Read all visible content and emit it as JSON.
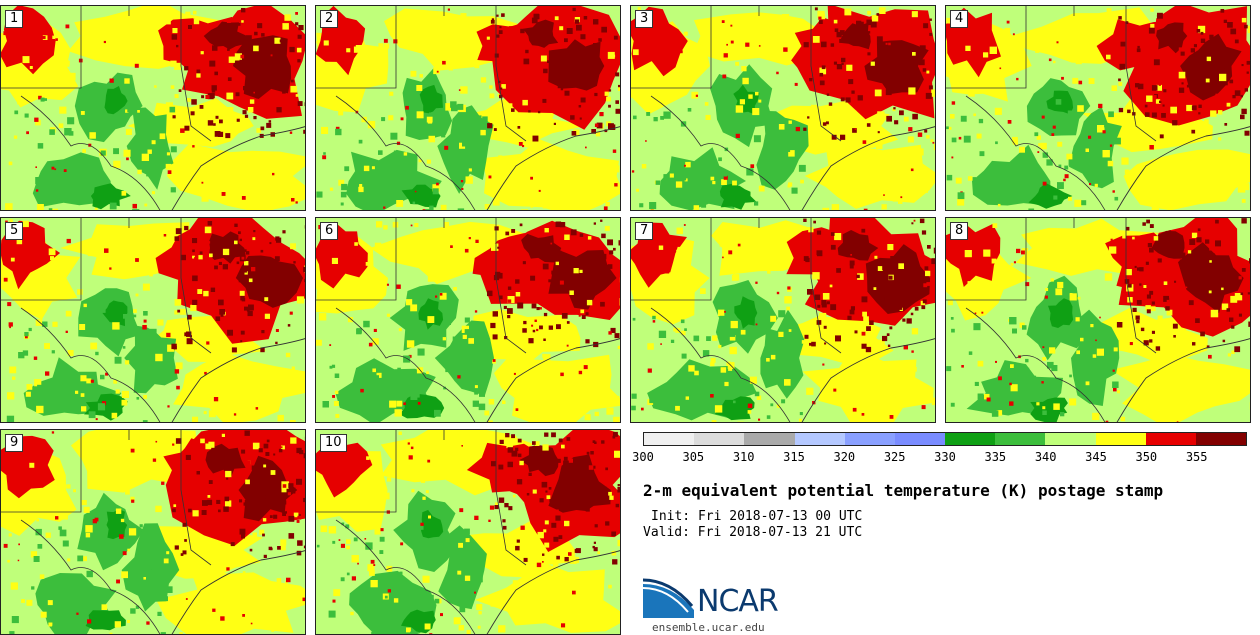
{
  "panels": [
    {
      "label": "1"
    },
    {
      "label": "2"
    },
    {
      "label": "3"
    },
    {
      "label": "4"
    },
    {
      "label": "5"
    },
    {
      "label": "6"
    },
    {
      "label": "7"
    },
    {
      "label": "8"
    },
    {
      "label": "9"
    },
    {
      "label": "10"
    }
  ],
  "colorbar": {
    "colors": [
      "#f0f0f0",
      "#dcdcdc",
      "#aaaaaa",
      "#b4c8ff",
      "#8aa0ff",
      "#7a8cff",
      "#0fa014",
      "#3cbe3c",
      "#bfff7a",
      "#ffff14",
      "#e60000",
      "#820000"
    ],
    "ticks": [
      "300",
      "305",
      "310",
      "315",
      "320",
      "325",
      "330",
      "335",
      "340",
      "345",
      "350",
      "355"
    ]
  },
  "title": "2-m equivalent potential temperature (K) postage stamp",
  "init_text": "Init: Fri 2018-07-13 00 UTC",
  "valid_text": "Valid: Fri 2018-07-13 21 UTC",
  "logo": {
    "text": "NCAR",
    "url": "ensemble.ucar.edu"
  }
}
